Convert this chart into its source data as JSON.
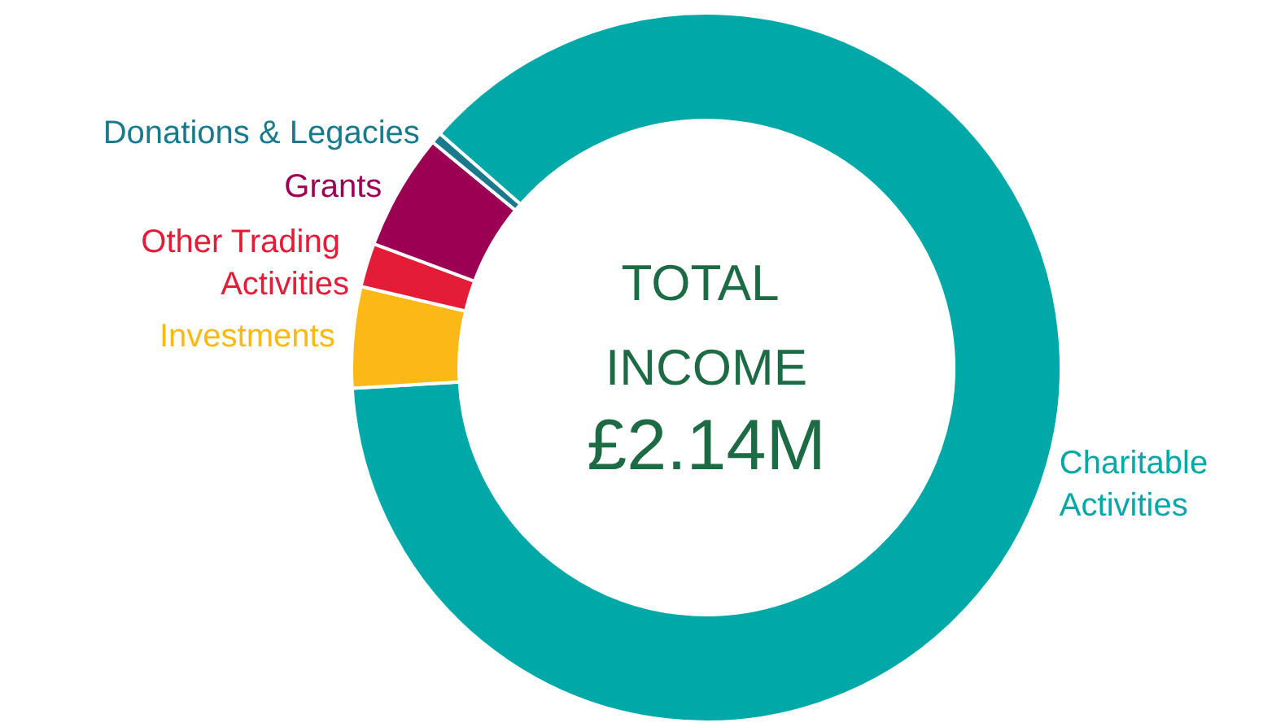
{
  "chart_data": {
    "type": "donut",
    "title": "TOTAL INCOME",
    "subtitle": "£2.14M",
    "categories": [
      "Charitable Activities",
      "Investments",
      "Other Trading Activities",
      "Grants",
      "Donations & Legacies"
    ],
    "values": [
      87.6,
      4.6,
      2.0,
      5.3,
      0.5
    ],
    "colors": [
      "#00a9a8",
      "#fbb817",
      "#e41c38",
      "#9c0052",
      "#1a7a8c"
    ],
    "legend": false
  }
}
